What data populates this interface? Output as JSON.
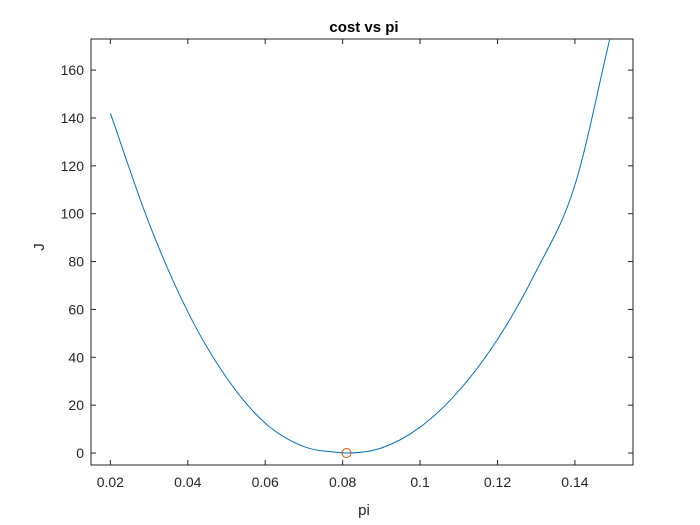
{
  "chart_data": {
    "type": "line",
    "title": "cost vs pi",
    "xlabel": "pi",
    "ylabel": "J",
    "xlim": [
      0.015,
      0.155
    ],
    "ylim": [
      -5,
      173
    ],
    "xticks": [
      0.02,
      0.04,
      0.06,
      0.08,
      0.1,
      0.12,
      0.14
    ],
    "xtick_labels": [
      "0.02",
      "0.04",
      "0.06",
      "0.08",
      "0.1",
      "0.12",
      "0.14"
    ],
    "yticks": [
      0,
      20,
      40,
      60,
      80,
      100,
      120,
      140,
      160
    ],
    "ytick_labels": [
      "0",
      "20",
      "40",
      "60",
      "80",
      "100",
      "120",
      "140",
      "160"
    ],
    "grid": false,
    "series": [
      {
        "color": "#0072BD",
        "x": [
          0.02,
          0.03,
          0.04,
          0.05,
          0.06,
          0.07,
          0.08,
          0.081,
          0.09,
          0.1,
          0.11,
          0.12,
          0.13,
          0.14,
          0.149
        ],
        "y": [
          142,
          96,
          59,
          31.5,
          12.5,
          2.7,
          0.1,
          0,
          2.1,
          10.8,
          26,
          47.5,
          76,
          112,
          173
        ]
      }
    ],
    "markers": [
      {
        "x": 0.081,
        "y": 0,
        "shape": "circle",
        "color": "#D95319"
      }
    ]
  }
}
